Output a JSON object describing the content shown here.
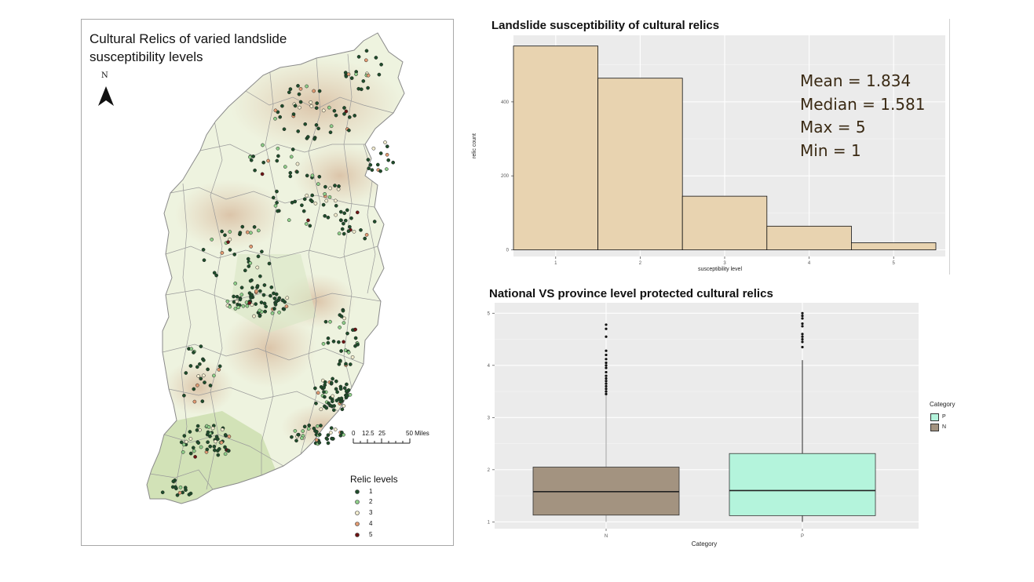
{
  "map": {
    "title_line1": "Cultural Relics of varied landslide",
    "title_line2": "susceptibility levels",
    "north_label": "N",
    "scale_ticks": [
      "0",
      "12.5",
      "25",
      "50 Miles"
    ],
    "legend_title": "Relic levels",
    "legend": [
      {
        "label": "1",
        "color": "#1f4d2b"
      },
      {
        "label": "2",
        "color": "#8fcf8a"
      },
      {
        "label": "3",
        "color": "#f3edcf"
      },
      {
        "label": "4",
        "color": "#e29b73"
      },
      {
        "label": "5",
        "color": "#6e1414"
      }
    ],
    "colors": {
      "land_light": "#eef3df",
      "land_mid": "#d9e6c4",
      "land_relief": "#e2cdb4",
      "land_south": "#c8dcaa",
      "boundary": "#9a9a9a"
    }
  },
  "histogram": {
    "title": "Landslide susceptibility of cultural relics",
    "stats": [
      "Mean = 1.834",
      "Median = 1.581",
      "Max = 5",
      "Min = 1"
    ]
  },
  "boxplot": {
    "title": "National VS province level protected cultural relics",
    "legend_title": "Category",
    "legend": [
      {
        "label": "P",
        "color": "#b4f4dc"
      },
      {
        "label": "N",
        "color": "#a39380"
      }
    ]
  },
  "chart_data": [
    {
      "type": "bar",
      "title": "Landslide susceptibility of cultural relics",
      "xlabel": "susceptibility level",
      "ylabel": "relic count",
      "categories": [
        "1",
        "2",
        "3",
        "4",
        "5"
      ],
      "values": [
        551,
        464,
        145,
        64,
        19
      ],
      "ylim": [
        -18,
        580
      ],
      "yticks": [
        "0",
        "200",
        "400"
      ],
      "xticks": [
        "1",
        "2",
        "3",
        "4",
        "5"
      ],
      "bar_color": "#e8d3b0",
      "grid": true
    },
    {
      "type": "box",
      "title": "National VS province level protected cultural relics",
      "xlabel": "Category",
      "ylabel": "",
      "ylim": [
        0.87,
        5.2
      ],
      "yticks": [
        "1",
        "2",
        "3",
        "4",
        "5"
      ],
      "categories": [
        "N",
        "P"
      ],
      "series": [
        {
          "name": "N",
          "min": 1.0,
          "q1": 1.13,
          "median": 1.58,
          "q3": 2.05,
          "whisker_high": 3.43,
          "color": "#a39380",
          "outliers": [
            3.45,
            3.5,
            3.55,
            3.6,
            3.65,
            3.7,
            3.75,
            3.8,
            3.87,
            3.95,
            4.0,
            4.05,
            4.12,
            4.2,
            4.28,
            4.55,
            4.7,
            4.78
          ]
        },
        {
          "name": "P",
          "min": 1.0,
          "q1": 1.12,
          "median": 1.6,
          "q3": 2.31,
          "whisker_high": 4.1,
          "color": "#b4f4dc",
          "outliers": [
            4.35,
            4.45,
            4.5,
            4.55,
            4.6,
            4.75,
            4.8,
            4.9,
            4.95,
            5.0
          ]
        }
      ],
      "grid": true
    }
  ]
}
